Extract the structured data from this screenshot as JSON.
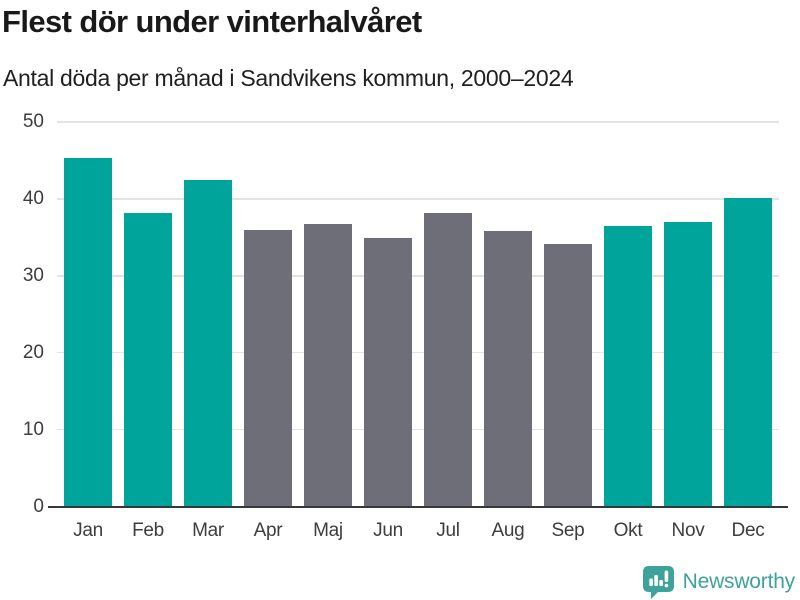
{
  "chart_data": {
    "type": "bar",
    "title": "Flest dör under vinterhalvåret",
    "subtitle": "Antal döda per månad i Sandvikens kommun, 2000–2024",
    "categories": [
      "Jan",
      "Feb",
      "Mar",
      "Apr",
      "Maj",
      "Jun",
      "Jul",
      "Aug",
      "Sep",
      "Okt",
      "Nov",
      "Dec"
    ],
    "series": [
      {
        "name": "Antal döda per månad",
        "values": [
          45.3,
          38.2,
          42.4,
          36.0,
          36.8,
          34.9,
          38.2,
          35.8,
          34.2,
          36.5,
          37.0,
          40.1
        ]
      }
    ],
    "bar_colors": [
      "#00a49b",
      "#00a49b",
      "#00a49b",
      "#6e6e78",
      "#6e6e78",
      "#6e6e78",
      "#6e6e78",
      "#6e6e78",
      "#6e6e78",
      "#00a49b",
      "#00a49b",
      "#00a49b"
    ],
    "highlighted_categories": [
      "Jan",
      "Feb",
      "Mar",
      "Okt",
      "Nov",
      "Dec"
    ],
    "palette": {
      "winter_months": "#00a49b",
      "summer_months": "#6e6e78"
    },
    "xlabel": "",
    "ylabel": "",
    "ylim": [
      0,
      50
    ],
    "yticks": [
      0,
      10,
      20,
      30,
      40,
      50
    ],
    "grid": "horizontal",
    "legend": "none"
  },
  "footer": {
    "brand": "Newsworthy",
    "brand_color": "#3ea29c"
  }
}
